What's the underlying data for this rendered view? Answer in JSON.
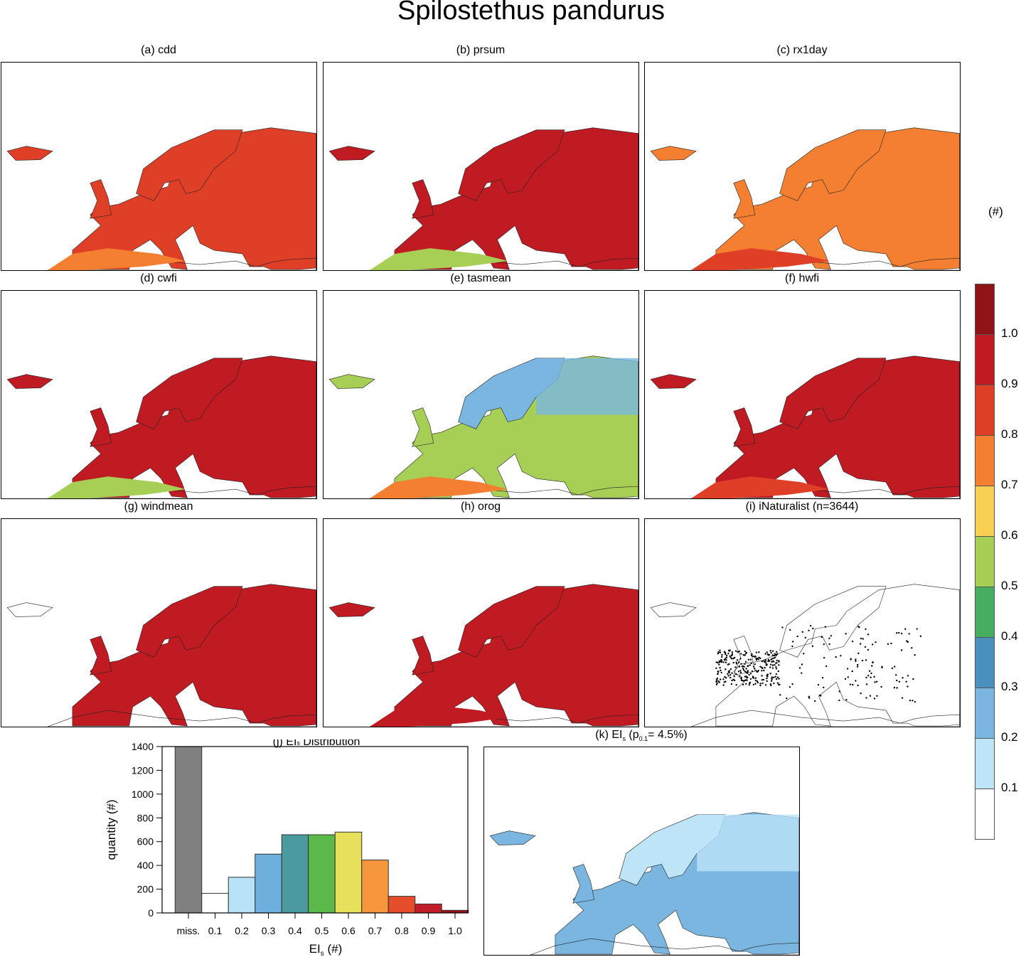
{
  "title": "Spilostethus pandurus",
  "panels": [
    {
      "label": "(a) cdd",
      "fill": "#e03f27",
      "south": "#f57f30"
    },
    {
      "label": "(b) prsum",
      "fill": "#c01b22",
      "south": "#a7cf55"
    },
    {
      "label": "(c) rx1day",
      "fill": "#f57f30",
      "south": "#e03f27"
    },
    {
      "label": "(d) cwfi",
      "fill": "#c01b22",
      "south": "#a7cf55"
    },
    {
      "label": "(e) tasmean",
      "fill": "#a7cf55",
      "south": "#f57f30",
      "north": "#7ab6e0"
    },
    {
      "label": "(f) hwfi",
      "fill": "#c01b22",
      "south": "#e03f27"
    },
    {
      "label": "(g) windmean",
      "fill": "#c01b22",
      "south": "#ffffff"
    },
    {
      "label": "(h) orog",
      "fill": "#c01b22",
      "south": "#c01b22"
    },
    {
      "label": "(i) iNaturalist (n=3644)",
      "fill": "none",
      "south": "none"
    }
  ],
  "panel_k": {
    "label_prefix": "(k) EI",
    "label_sub": "s",
    "label_mid": " (p",
    "label_sub2": "0.1",
    "label_suffix": "=  4.5%)",
    "fill": "#7ab6e0"
  },
  "colorbar": {
    "unit": "(#)",
    "colors": [
      "#ffffff",
      "#bde4f7",
      "#7ab6e0",
      "#4a90bd",
      "#47ad61",
      "#a7cf55",
      "#f8d053",
      "#f57f30",
      "#e03f27",
      "#c01b22",
      "#8e1418"
    ],
    "labels": [
      "0.1",
      "0.2",
      "0.3",
      "0.4",
      "0.5",
      "0.6",
      "0.7",
      "0.8",
      "0.9",
      "1.0"
    ]
  },
  "chart_data": {
    "type": "bar",
    "title": "(j) EIs Distribution",
    "title_main": "(j) EI",
    "title_sub": "s",
    "title_rest": " Distribution",
    "xlabel": "EIs (#)",
    "xlabel_main": "EI",
    "xlabel_sub": "s",
    "xlabel_rest": " (#)",
    "ylabel": "quantity (#)",
    "categories": [
      "miss.",
      "0.1",
      "0.2",
      "0.3",
      "0.4",
      "0.5",
      "0.6",
      "0.7",
      "0.8",
      "0.9",
      "1.0"
    ],
    "values": [
      1400,
      165,
      300,
      495,
      658,
      658,
      680,
      445,
      140,
      75,
      22
    ],
    "colors": [
      "#808080",
      "#ffffff",
      "#b8e2f8",
      "#6eb0dd",
      "#4a9ba0",
      "#5bb84a",
      "#e6e05a",
      "#f5973a",
      "#e54c2a",
      "#c21d26",
      "#9a1318"
    ],
    "ylim": [
      0,
      1400
    ],
    "yticks": [
      0,
      200,
      400,
      600,
      800,
      1000,
      1200,
      1400
    ]
  }
}
